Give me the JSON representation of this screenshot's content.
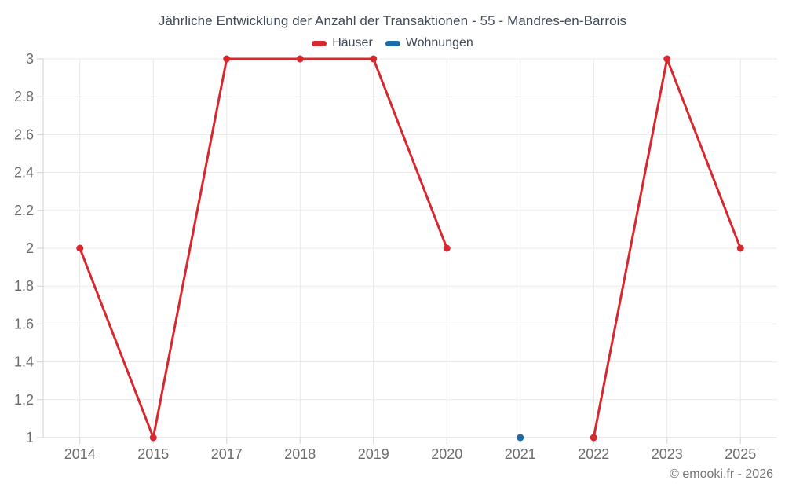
{
  "title": "Jährliche Entwicklung der Anzahl der Transaktionen - 55 - Mandres-en-Barrois",
  "footer": "© emooki.fr - 2026",
  "colors": {
    "hauser": "#d7282f",
    "wohnungen": "#1a6ca8",
    "grid": "#e9e9e9",
    "axis": "#d2d2d2",
    "tick_text": "#6d6d6d",
    "title_text": "#414b57",
    "footer_text": "#757575"
  },
  "chart_data": {
    "type": "line",
    "title": "Jährliche Entwicklung der Anzahl der Transaktionen - 55 - Mandres-en-Barrois",
    "categories": [
      "2014",
      "2015",
      "2017",
      "2018",
      "2019",
      "2020",
      "2021",
      "2022",
      "2023",
      "2025"
    ],
    "series": [
      {
        "name": "Häuser",
        "color": "#d7282f",
        "values": [
          2,
          1,
          3,
          3,
          3,
          2,
          null,
          1,
          3,
          2
        ]
      },
      {
        "name": "Wohnungen",
        "color": "#1a6ca8",
        "values": [
          null,
          null,
          null,
          null,
          null,
          null,
          1,
          null,
          null,
          null
        ]
      }
    ],
    "xlabel": "",
    "ylabel": "",
    "ylim": [
      1,
      3
    ],
    "yticks": [
      1,
      1.2,
      1.4,
      1.6,
      1.8,
      2,
      2.2,
      2.4,
      2.6,
      2.8,
      3
    ],
    "ytick_labels": [
      "1",
      "1.2",
      "1.4",
      "1.6",
      "1.8",
      "2",
      "2.2",
      "2.4",
      "2.6",
      "2.8",
      "3"
    ],
    "grid": true,
    "legend_position": "top",
    "marker_radius": 4.5,
    "line_width": 3
  }
}
